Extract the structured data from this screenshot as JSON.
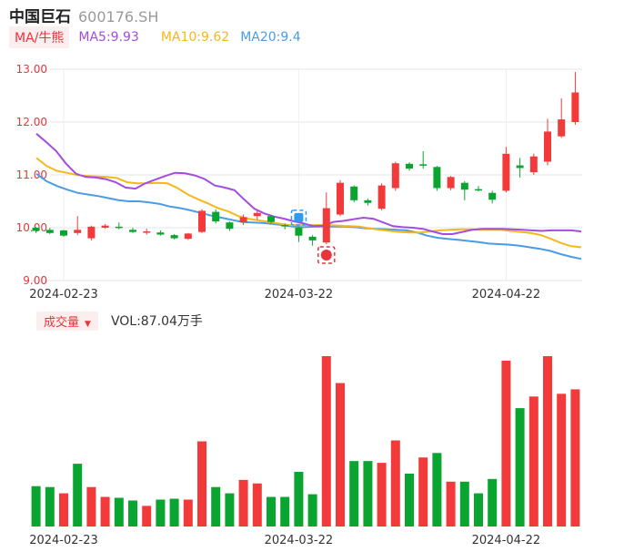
{
  "header": {
    "name": "中国巨石",
    "code": "600176.SH"
  },
  "ma_legend": {
    "tag": "MA/牛熊",
    "items": [
      {
        "label": "MA5:9.93",
        "color": "#a34ce0"
      },
      {
        "label": "MA10:9.62",
        "color": "#f5b81b"
      },
      {
        "label": "MA20:9.4",
        "color": "#4a9be8"
      }
    ]
  },
  "volume_legend": {
    "tag": "成交量",
    "value": "VOL:87.04万手"
  },
  "colors": {
    "up": "#f23a3a",
    "down": "#0aa531",
    "ma5": "#a34ce0",
    "ma10": "#f5b81b",
    "ma20": "#4a9be8"
  },
  "markers": [
    {
      "icon": "blue-square-marker-icon",
      "candle": 19,
      "color": "#2e9bf0"
    },
    {
      "icon": "red-signal-marker-icon",
      "candle": 21,
      "color": "#e8353b"
    }
  ],
  "chart_data": [
    {
      "type": "candlestick",
      "y_ticks": [
        "13.00",
        "12.00",
        "11.00",
        "10.00",
        "9.00"
      ],
      "ylim": [
        9.0,
        13.0
      ],
      "x_ticks": [
        {
          "label": "2024-02-23",
          "index": 2
        },
        {
          "label": "2024-03-22",
          "index": 19
        },
        {
          "label": "2024-04-22",
          "index": 34
        }
      ],
      "candles": [
        [
          10.0,
          9.94,
          10.02,
          9.9
        ],
        [
          9.96,
          9.9,
          10.0,
          9.88
        ],
        [
          9.95,
          9.85,
          9.96,
          9.83
        ],
        [
          9.9,
          9.96,
          10.22,
          9.86
        ],
        [
          9.8,
          10.02,
          10.04,
          9.76
        ],
        [
          10.0,
          10.04,
          10.07,
          9.98
        ],
        [
          10.02,
          10.0,
          10.1,
          9.97
        ],
        [
          9.96,
          9.92,
          10.0,
          9.9
        ],
        [
          9.93,
          9.93,
          9.98,
          9.87
        ],
        [
          9.91,
          9.87,
          9.95,
          9.85
        ],
        [
          9.86,
          9.8,
          9.88,
          9.78
        ],
        [
          9.79,
          9.89,
          9.9,
          9.77
        ],
        [
          9.92,
          10.32,
          10.35,
          9.9
        ],
        [
          10.3,
          10.12,
          10.35,
          10.08
        ],
        [
          10.1,
          9.98,
          10.12,
          9.94
        ],
        [
          10.1,
          10.2,
          10.25,
          10.05
        ],
        [
          10.22,
          10.28,
          10.33,
          10.15
        ],
        [
          10.22,
          10.11,
          10.24,
          10.08
        ],
        [
          10.05,
          10.04,
          10.08,
          9.97
        ],
        [
          10.0,
          9.85,
          10.02,
          9.73
        ],
        [
          9.83,
          9.76,
          9.86,
          9.66
        ],
        [
          9.72,
          10.37,
          10.67,
          9.69
        ],
        [
          10.25,
          10.85,
          10.9,
          10.22
        ],
        [
          10.78,
          10.52,
          10.8,
          10.48
        ],
        [
          10.52,
          10.47,
          10.55,
          10.42
        ],
        [
          10.36,
          10.8,
          10.84,
          10.33
        ],
        [
          10.75,
          11.22,
          11.25,
          10.7
        ],
        [
          11.21,
          11.12,
          11.24,
          11.08
        ],
        [
          11.2,
          11.18,
          11.45,
          11.12
        ],
        [
          11.15,
          10.75,
          11.17,
          10.7
        ],
        [
          10.75,
          10.96,
          10.98,
          10.71
        ],
        [
          10.85,
          10.72,
          10.88,
          10.52
        ],
        [
          10.73,
          10.71,
          10.79,
          10.69
        ],
        [
          10.66,
          10.53,
          10.7,
          10.46
        ],
        [
          10.7,
          11.4,
          11.53,
          10.67
        ],
        [
          11.18,
          11.13,
          11.32,
          10.95
        ],
        [
          11.05,
          11.35,
          11.4,
          11.0
        ],
        [
          11.25,
          11.82,
          12.06,
          11.18
        ],
        [
          11.73,
          12.05,
          12.45,
          11.7
        ],
        [
          12.0,
          12.56,
          12.95,
          11.95
        ]
      ],
      "ma5": [
        11.78,
        11.62,
        11.45,
        11.21,
        11.02,
        10.96,
        10.95,
        10.92,
        10.86,
        10.76,
        10.74,
        10.84,
        10.91,
        10.98,
        11.04,
        11.03,
        10.99,
        10.92,
        10.8,
        10.76,
        10.71,
        10.53,
        10.36,
        10.27,
        10.21,
        10.17,
        10.12,
        10.08,
        10.03,
        10.04,
        10.11,
        10.13,
        10.16,
        10.19,
        10.17,
        10.1,
        10.03,
        10.01,
        10.0,
        9.98,
        9.93,
        9.88,
        9.88,
        9.92,
        9.96,
        9.98,
        9.98,
        9.98,
        9.97,
        9.96,
        9.95,
        9.94,
        9.95,
        9.95,
        9.95,
        9.93
      ],
      "ma10": [
        11.32,
        11.17,
        11.08,
        11.04,
        11.0,
        10.98,
        10.97,
        10.96,
        10.94,
        10.86,
        10.84,
        10.84,
        10.85,
        10.84,
        10.75,
        10.63,
        10.54,
        10.46,
        10.37,
        10.31,
        10.22,
        10.17,
        10.14,
        10.11,
        10.08,
        10.05,
        10.05,
        10.05,
        10.05,
        10.05,
        10.04,
        10.03,
        10.02,
        9.99,
        9.96,
        9.94,
        9.92,
        9.91,
        9.91,
        9.93,
        9.95,
        9.96,
        9.97,
        9.97,
        9.96,
        9.96,
        9.96,
        9.94,
        9.92,
        9.9,
        9.86,
        9.79,
        9.71,
        9.65,
        9.63
      ],
      "ma20": [
        11.02,
        10.88,
        10.79,
        10.72,
        10.66,
        10.63,
        10.6,
        10.56,
        10.52,
        10.5,
        10.5,
        10.48,
        10.45,
        10.4,
        10.37,
        10.33,
        10.28,
        10.23,
        10.19,
        10.15,
        10.11,
        10.1,
        10.09,
        10.07,
        10.05,
        10.02,
        10.01,
        10.02,
        10.02,
        10.02,
        10.02,
        10.01,
        9.99,
        9.98,
        9.97,
        9.96,
        9.95,
        9.91,
        9.85,
        9.81,
        9.79,
        9.77,
        9.75,
        9.73,
        9.7,
        9.69,
        9.68,
        9.66,
        9.63,
        9.6,
        9.56,
        9.5,
        9.45,
        9.41
      ]
    },
    {
      "type": "bar",
      "title": "成交量",
      "values": [
        45,
        44,
        37,
        70,
        44,
        33,
        32,
        29,
        23,
        30,
        31,
        30,
        95,
        44,
        37,
        52,
        48,
        33,
        33,
        61,
        36,
        190,
        160,
        73,
        73,
        71,
        96,
        59,
        77,
        82,
        50,
        50,
        37,
        53,
        185,
        132,
        145,
        190,
        148,
        153
      ],
      "colors": [
        "d",
        "d",
        "u",
        "d",
        "u",
        "u",
        "d",
        "d",
        "u",
        "d",
        "d",
        "u",
        "u",
        "d",
        "d",
        "u",
        "u",
        "d",
        "d",
        "d",
        "d",
        "u",
        "u",
        "d",
        "d",
        "u",
        "u",
        "d",
        "u",
        "d",
        "u",
        "d",
        "d",
        "d",
        "u",
        "d",
        "u",
        "u",
        "u",
        "u"
      ],
      "ymax": 190
    }
  ]
}
